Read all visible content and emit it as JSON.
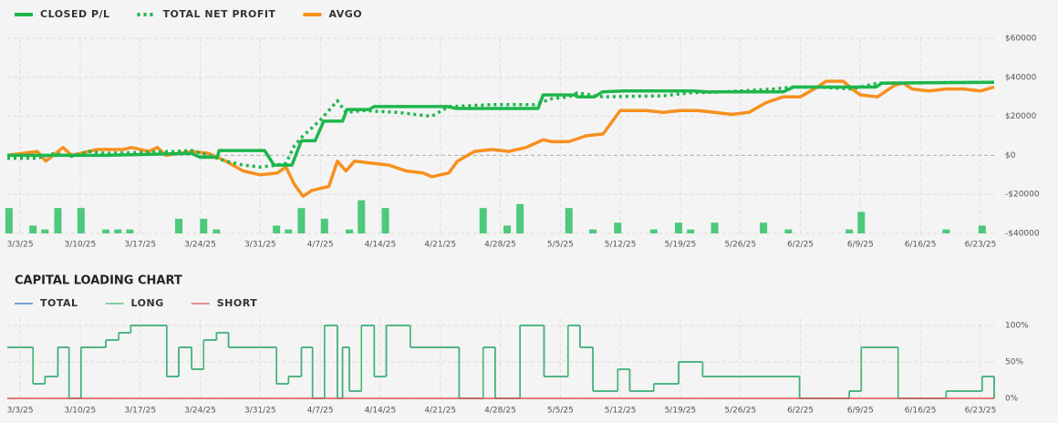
{
  "chart_data": [
    {
      "type": "line",
      "legend": "top-left",
      "grid": true,
      "xlim": [
        -1.5,
        113.6
      ],
      "xticks": [
        {
          "value": 0,
          "label": "3/3/25"
        },
        {
          "value": 7,
          "label": "3/10/25"
        },
        {
          "value": 14,
          "label": "3/17/25"
        },
        {
          "value": 21,
          "label": "3/24/25"
        },
        {
          "value": 28,
          "label": "3/31/25"
        },
        {
          "value": 35,
          "label": "4/7/25"
        },
        {
          "value": 42,
          "label": "4/14/25"
        },
        {
          "value": 49,
          "label": "4/21/25"
        },
        {
          "value": 56,
          "label": "4/28/25"
        },
        {
          "value": 63,
          "label": "5/5/25"
        },
        {
          "value": 70,
          "label": "5/12/25"
        },
        {
          "value": 77,
          "label": "5/19/25"
        },
        {
          "value": 84,
          "label": "5/26/25"
        },
        {
          "value": 91,
          "label": "6/2/25"
        },
        {
          "value": 98,
          "label": "6/9/25"
        },
        {
          "value": 105,
          "label": "6/16/25"
        },
        {
          "value": 112,
          "label": "6/23/25"
        }
      ],
      "ylim": [
        -40000,
        60000
      ],
      "yticks": [
        {
          "value": -40000,
          "label": "-$40000"
        },
        {
          "value": -20000,
          "label": "-$20000"
        },
        {
          "value": 0,
          "label": "$0"
        },
        {
          "value": 20000,
          "label": "$20000"
        },
        {
          "value": 40000,
          "label": "$40000"
        },
        {
          "value": 60000,
          "label": "$60000"
        }
      ],
      "series": [
        {
          "name": "CLOSED P/L",
          "color": "#1db64c",
          "style": "solid",
          "x": [
            -1.5,
            10,
            20,
            21,
            23,
            23.2,
            28.5,
            29.6,
            31.7,
            32.8,
            34.4,
            35.4,
            37.6,
            38.1,
            40.7,
            41.3,
            49.8,
            50.9,
            60.4,
            61,
            64.7,
            65,
            67,
            67.9,
            70.5,
            78.5,
            80,
            89,
            90.2,
            99.8,
            100.5,
            113.6
          ],
          "values": [
            0,
            0,
            1000,
            -1000,
            -1000,
            2500,
            2500,
            -5000,
            -5000,
            7500,
            7500,
            17500,
            17500,
            23500,
            23500,
            25000,
            25000,
            24000,
            24000,
            31000,
            31000,
            30000,
            30000,
            32500,
            33000,
            33000,
            32500,
            32500,
            35000,
            35000,
            37000,
            37500
          ]
        },
        {
          "name": "TOTAL NET PROFIT",
          "color": "#1db64c",
          "style": "dotted",
          "x": [
            -1.5,
            2,
            4,
            6,
            8,
            10,
            14,
            18,
            20,
            22,
            24,
            26,
            28,
            30,
            31,
            32,
            33,
            35,
            37,
            38,
            40,
            44,
            48,
            50,
            55,
            60,
            62,
            64,
            65,
            68,
            75,
            78,
            82,
            88,
            90,
            93,
            97,
            100,
            113.6
          ],
          "values": [
            -1500,
            -1500,
            1000,
            -500,
            2000,
            1000,
            1500,
            2000,
            2500,
            0,
            -3000,
            -5000,
            -6000,
            -5000,
            -4000,
            5000,
            10000,
            18000,
            28000,
            22000,
            23000,
            22000,
            20000,
            25000,
            26000,
            26000,
            29000,
            30000,
            32000,
            30000,
            30500,
            32000,
            32500,
            34000,
            35000,
            35000,
            34000,
            37000,
            37500
          ]
        },
        {
          "name": "AVGO",
          "color": "#f7901e",
          "style": "solid",
          "x": [
            -1.5,
            2,
            3,
            5,
            6,
            8,
            9,
            12,
            13,
            15,
            16,
            17,
            20,
            22,
            24,
            26,
            28,
            30,
            31,
            32,
            33,
            34,
            36,
            37,
            38,
            39,
            41,
            43,
            45,
            47,
            48,
            50,
            51,
            53,
            55,
            57,
            59,
            61,
            62,
            64,
            66,
            68,
            70,
            73,
            75,
            77,
            79,
            81,
            83,
            85,
            87,
            89,
            91,
            93,
            94,
            96,
            97,
            98,
            100,
            101,
            102,
            103,
            104,
            106,
            108,
            110,
            112,
            113.6
          ],
          "values": [
            0,
            2000,
            -3000,
            4000,
            0,
            2000,
            3000,
            3000,
            4000,
            2000,
            4000,
            0,
            2000,
            1000,
            -3000,
            -8000,
            -10000,
            -9000,
            -6000,
            -15000,
            -21000,
            -18000,
            -16000,
            -3000,
            -8000,
            -3000,
            -4000,
            -5000,
            -8000,
            -9000,
            -11000,
            -9000,
            -3000,
            2000,
            3000,
            2000,
            4000,
            8000,
            7000,
            7000,
            10000,
            11000,
            23000,
            23000,
            22000,
            23000,
            23000,
            22000,
            21000,
            22000,
            27000,
            30000,
            30000,
            35000,
            38000,
            38000,
            34000,
            31000,
            30000,
            33000,
            36000,
            37000,
            34000,
            33000,
            34000,
            34000,
            33000,
            35000
          ]
        }
      ],
      "bars": {
        "color": "#4cc97a",
        "x": [
          -1.3,
          1.5,
          2.9,
          4.4,
          7.1,
          10,
          11.4,
          12.8,
          18.5,
          21.4,
          22.9,
          29.9,
          31.3,
          32.8,
          35.5,
          38.4,
          39.8,
          42.6,
          54,
          56.8,
          58.3,
          64,
          66.8,
          69.7,
          73.9,
          76.8,
          78.2,
          81,
          86.7,
          89.6,
          96.7,
          98.1,
          108,
          112.2
        ],
        "values": [
          13000,
          4000,
          2000,
          13000,
          13000,
          2000,
          2000,
          2000,
          7500,
          7500,
          2000,
          4000,
          2000,
          13000,
          7500,
          2000,
          17000,
          13000,
          13000,
          4000,
          15000,
          13000,
          2000,
          5500,
          2000,
          5500,
          2000,
          5500,
          5500,
          2000,
          2000,
          11000,
          2000,
          4000
        ]
      }
    },
    {
      "type": "step",
      "title": "CAPITAL LOADING CHART",
      "legend": "top-left",
      "grid": true,
      "xlim": [
        -1.5,
        113.6
      ],
      "xticks": [
        {
          "value": 0,
          "label": "3/3/25"
        },
        {
          "value": 7,
          "label": "3/10/25"
        },
        {
          "value": 14,
          "label": "3/17/25"
        },
        {
          "value": 21,
          "label": "3/24/25"
        },
        {
          "value": 28,
          "label": "3/31/25"
        },
        {
          "value": 35,
          "label": "4/7/25"
        },
        {
          "value": 42,
          "label": "4/14/25"
        },
        {
          "value": 49,
          "label": "4/21/25"
        },
        {
          "value": 56,
          "label": "4/28/25"
        },
        {
          "value": 63,
          "label": "5/5/25"
        },
        {
          "value": 70,
          "label": "5/12/25"
        },
        {
          "value": 77,
          "label": "5/19/25"
        },
        {
          "value": 84,
          "label": "5/26/25"
        },
        {
          "value": 91,
          "label": "6/2/25"
        },
        {
          "value": 98,
          "label": "6/9/25"
        },
        {
          "value": 105,
          "label": "6/16/25"
        },
        {
          "value": 112,
          "label": "6/23/25"
        }
      ],
      "ylim": [
        0,
        110
      ],
      "yticks": [
        {
          "value": 0,
          "label": "0%"
        },
        {
          "value": 50,
          "label": "50%"
        },
        {
          "value": 100,
          "label": "100%"
        }
      ],
      "x": [
        -1.5,
        1.5,
        2.9,
        4.4,
        5.7,
        7.1,
        10,
        11.5,
        12.9,
        17.1,
        18.5,
        20,
        21.4,
        22.9,
        24.3,
        29.9,
        31.3,
        32.8,
        34.1,
        35.5,
        37,
        37.6,
        38.4,
        39.8,
        41.3,
        42.7,
        45.5,
        51.2,
        54,
        55.4,
        58.3,
        61.1,
        63.9,
        65.3,
        66.8,
        69.7,
        71.1,
        73.9,
        76.8,
        79.6,
        90.9,
        96.7,
        98.1,
        102.4,
        108,
        112.2,
        113.6
      ],
      "series": [
        {
          "name": "TOTAL",
          "color": "#2a6fb5",
          "values": [
            70,
            20,
            30,
            70,
            0,
            70,
            80,
            90,
            100,
            30,
            70,
            40,
            80,
            90,
            70,
            20,
            30,
            70,
            0,
            100,
            0,
            70,
            10,
            100,
            30,
            100,
            70,
            0,
            70,
            0,
            100,
            30,
            100,
            70,
            10,
            40,
            10,
            20,
            50,
            30,
            0,
            10,
            70,
            0,
            10,
            30,
            0
          ]
        },
        {
          "name": "LONG",
          "color": "#3cb86a",
          "values": [
            70,
            20,
            30,
            70,
            0,
            70,
            80,
            90,
            100,
            30,
            70,
            40,
            80,
            90,
            70,
            20,
            30,
            70,
            0,
            100,
            0,
            70,
            10,
            100,
            30,
            100,
            70,
            0,
            70,
            0,
            100,
            30,
            100,
            70,
            10,
            40,
            10,
            20,
            50,
            30,
            0,
            10,
            70,
            0,
            10,
            30,
            0
          ]
        },
        {
          "name": "SHORT",
          "color": "#d9534f",
          "values": [
            0,
            0,
            0,
            0,
            0,
            0,
            0,
            0,
            0,
            0,
            0,
            0,
            0,
            0,
            0,
            0,
            0,
            0,
            0,
            0,
            0,
            0,
            0,
            0,
            0,
            0,
            0,
            0,
            0,
            0,
            0,
            0,
            0,
            0,
            0,
            0,
            0,
            0,
            0,
            0,
            0,
            0,
            0,
            0,
            0,
            0,
            0
          ]
        }
      ]
    }
  ]
}
